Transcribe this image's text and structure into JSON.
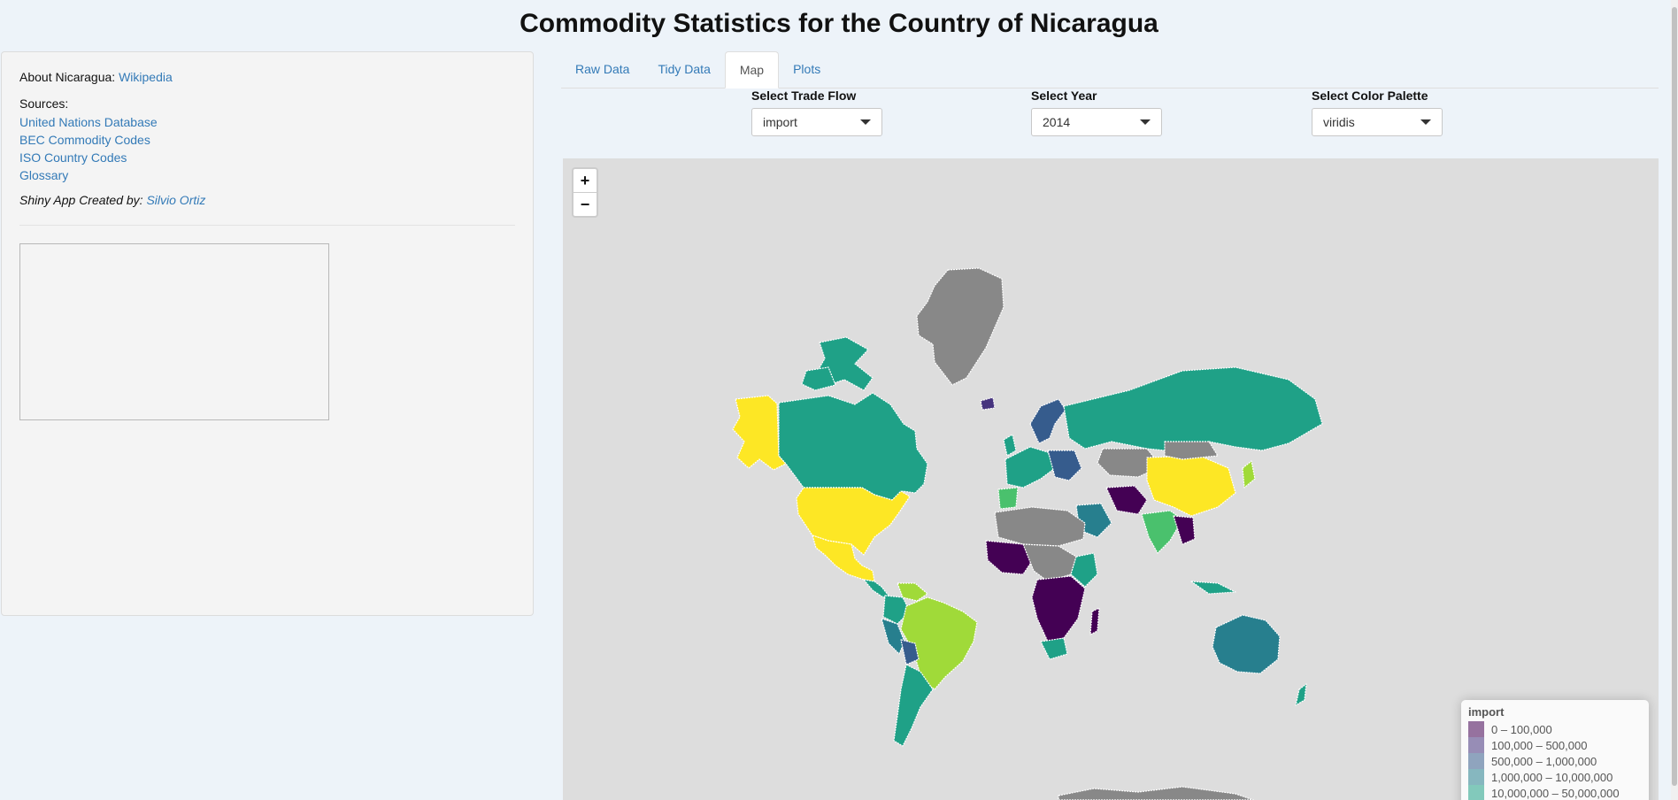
{
  "page": {
    "title": "Commodity Statistics for the Country of Nicaragua"
  },
  "sidebar": {
    "about_prefix": "About Nicaragua:",
    "about_link": "Wikipedia",
    "sources_label": "Sources:",
    "sources": [
      "United Nations Database",
      "BEC Commodity Codes",
      "ISO Country Codes",
      "Glossary"
    ],
    "credit_prefix": "Shiny App Created by:",
    "credit_author": "Silvio Ortiz"
  },
  "tabs": [
    {
      "label": "Raw Data",
      "active": false
    },
    {
      "label": "Tidy Data",
      "active": false
    },
    {
      "label": "Map",
      "active": true
    },
    {
      "label": "Plots",
      "active": false
    }
  ],
  "controls": {
    "trade_flow": {
      "label": "Select Trade Flow",
      "value": "import"
    },
    "year": {
      "label": "Select Year",
      "value": "2014"
    },
    "palette": {
      "label": "Select Color Palette",
      "value": "viridis"
    }
  },
  "map": {
    "zoom_in": "+",
    "zoom_out": "−",
    "no_data_color": "#888888",
    "ocean_color": "#dddddd",
    "legend": {
      "title": "import",
      "items": [
        {
          "label": "0 – 100,000",
          "color": "#440154"
        },
        {
          "label": "100,000 – 500,000",
          "color": "#46337e"
        },
        {
          "label": "500,000 – 1,000,000",
          "color": "#365c8d"
        },
        {
          "label": "1,000,000 – 10,000,000",
          "color": "#277f8e"
        },
        {
          "label": "10,000,000 – 50,000,000",
          "color": "#1fa187"
        }
      ]
    },
    "palette_colors": {
      "c0": "#440154",
      "c1": "#46337e",
      "c2": "#365c8d",
      "c3": "#277f8e",
      "c4": "#1fa187",
      "c5": "#4ac16d",
      "c6": "#a0da39",
      "c7": "#fde725"
    }
  }
}
